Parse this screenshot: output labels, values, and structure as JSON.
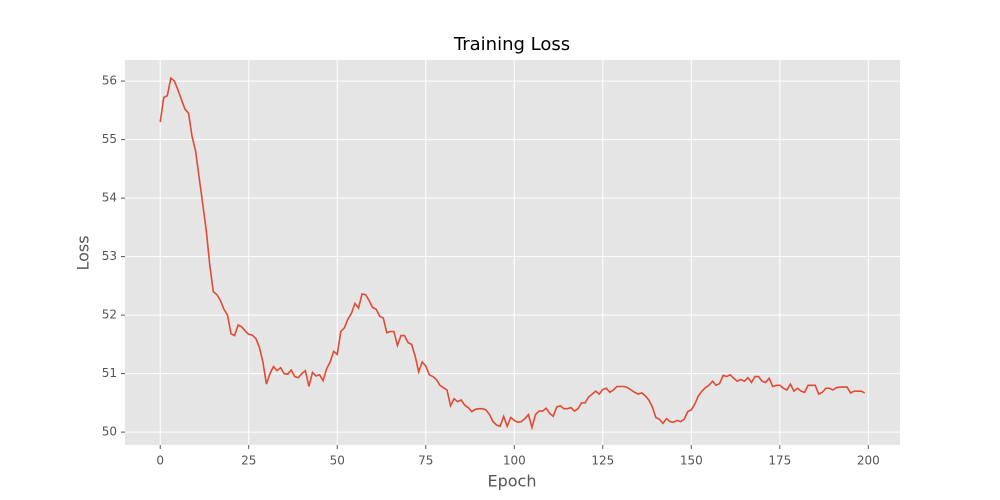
{
  "chart_data": {
    "type": "line",
    "title": "Training Loss",
    "xlabel": "Epoch",
    "ylabel": "Loss",
    "x": [
      0,
      1,
      2,
      3,
      4,
      5,
      6,
      7,
      8,
      9,
      10,
      11,
      12,
      13,
      14,
      15,
      16,
      17,
      18,
      19,
      20,
      21,
      22,
      23,
      24,
      25,
      26,
      27,
      28,
      29,
      30,
      31,
      32,
      33,
      34,
      35,
      36,
      37,
      38,
      39,
      40,
      41,
      42,
      43,
      44,
      45,
      46,
      47,
      48,
      49,
      50,
      51,
      52,
      53,
      54,
      55,
      56,
      57,
      58,
      59,
      60,
      61,
      62,
      63,
      64,
      65,
      66,
      67,
      68,
      69,
      70,
      71,
      72,
      73,
      74,
      75,
      76,
      77,
      78,
      79,
      80,
      81,
      82,
      83,
      84,
      85,
      86,
      87,
      88,
      89,
      90,
      91,
      92,
      93,
      94,
      95,
      96,
      97,
      98,
      99,
      100,
      101,
      102,
      103,
      104,
      105,
      106,
      107,
      108,
      109,
      110,
      111,
      112,
      113,
      114,
      115,
      116,
      117,
      118,
      119,
      120,
      121,
      122,
      123,
      124,
      125,
      126,
      127,
      128,
      129,
      130,
      131,
      132,
      133,
      134,
      135,
      136,
      137,
      138,
      139,
      140,
      141,
      142,
      143,
      144,
      145,
      146,
      147,
      148,
      149,
      150,
      151,
      152,
      153,
      154,
      155,
      156,
      157,
      158,
      159,
      160,
      161,
      162,
      163,
      164,
      165,
      166,
      167,
      168,
      169,
      170,
      171,
      172,
      173,
      174,
      175,
      176,
      177,
      178,
      179,
      180,
      181,
      182,
      183,
      184,
      185,
      186,
      187,
      188,
      189,
      190,
      191,
      192,
      193,
      194,
      195,
      196,
      197,
      198,
      199
    ],
    "series": [
      {
        "color": "#E24A33",
        "values": [
          55.3,
          55.72,
          55.75,
          56.05,
          56.0,
          55.85,
          55.68,
          55.52,
          55.45,
          55.05,
          54.8,
          54.35,
          53.9,
          53.45,
          52.85,
          52.4,
          52.35,
          52.25,
          52.1,
          52.0,
          51.68,
          51.65,
          51.83,
          51.8,
          51.73,
          51.67,
          51.66,
          51.6,
          51.45,
          51.2,
          50.82,
          51.0,
          51.12,
          51.05,
          51.1,
          51.0,
          50.99,
          51.06,
          50.95,
          50.93,
          51.0,
          51.05,
          50.78,
          51.02,
          50.96,
          50.98,
          50.88,
          51.08,
          51.2,
          51.38,
          51.33,
          51.72,
          51.78,
          51.93,
          52.03,
          52.2,
          52.12,
          52.36,
          52.35,
          52.25,
          52.13,
          52.1,
          51.98,
          51.95,
          51.7,
          51.72,
          51.72,
          51.48,
          51.65,
          51.65,
          51.53,
          51.5,
          51.3,
          51.03,
          51.2,
          51.13,
          50.98,
          50.95,
          50.9,
          50.8,
          50.76,
          50.72,
          50.45,
          50.57,
          50.52,
          50.55,
          50.46,
          50.42,
          50.35,
          50.39,
          50.4,
          50.4,
          50.38,
          50.3,
          50.18,
          50.12,
          50.1,
          50.27,
          50.1,
          50.25,
          50.2,
          50.17,
          50.18,
          50.23,
          50.3,
          50.08,
          50.3,
          50.36,
          50.36,
          50.41,
          50.32,
          50.27,
          50.43,
          50.45,
          50.4,
          50.4,
          50.42,
          50.36,
          50.4,
          50.5,
          50.5,
          50.6,
          50.65,
          50.7,
          50.65,
          50.73,
          50.75,
          50.68,
          50.72,
          50.78,
          50.78,
          50.78,
          50.76,
          50.72,
          50.68,
          50.65,
          50.67,
          50.62,
          50.55,
          50.43,
          50.25,
          50.22,
          50.15,
          50.23,
          50.18,
          50.17,
          50.2,
          50.18,
          50.22,
          50.35,
          50.38,
          50.48,
          50.62,
          50.7,
          50.76,
          50.8,
          50.87,
          50.8,
          50.83,
          50.97,
          50.95,
          50.98,
          50.92,
          50.87,
          50.9,
          50.87,
          50.93,
          50.85,
          50.95,
          50.95,
          50.87,
          50.85,
          50.92,
          50.78,
          50.8,
          50.8,
          50.75,
          50.72,
          50.82,
          50.7,
          50.75,
          50.7,
          50.68,
          50.8,
          50.8,
          50.8,
          50.65,
          50.68,
          50.75,
          50.75,
          50.72,
          50.76,
          50.77,
          50.77,
          50.77,
          50.67,
          50.7,
          50.7,
          50.7,
          50.67
        ]
      }
    ],
    "xlim": [
      -9.95,
      208.95
    ],
    "ylim": [
      49.78,
      56.36
    ],
    "xticks": [
      0,
      25,
      50,
      75,
      100,
      125,
      150,
      175,
      200
    ],
    "yticks": [
      50,
      51,
      52,
      53,
      54,
      55,
      56
    ],
    "grid": true
  }
}
